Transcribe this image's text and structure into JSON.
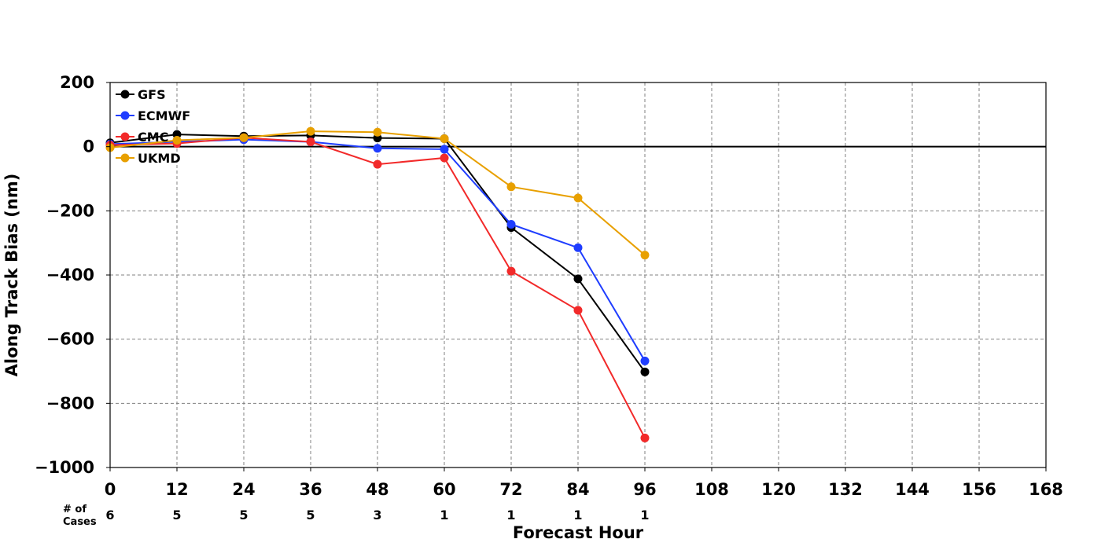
{
  "chart_data": {
    "type": "line",
    "title": "",
    "xlabel": "Forecast Hour",
    "ylabel": "Along Track Bias (nm)",
    "xlim": [
      0,
      168
    ],
    "ylim": [
      -1000,
      200
    ],
    "x_ticks": [
      0,
      12,
      24,
      36,
      48,
      60,
      72,
      84,
      96,
      108,
      120,
      132,
      144,
      156,
      168
    ],
    "y_ticks": [
      200,
      0,
      -200,
      -400,
      -600,
      -800,
      -1000
    ],
    "y_tick_labels": [
      "200",
      "0",
      "−200",
      "−400",
      "−600",
      "−800",
      "−1000"
    ],
    "grid": true,
    "legend_position": "top-left",
    "cases_label": "# of Cases",
    "cases_label_lines": [
      "# of",
      "Cases"
    ],
    "cases": [
      {
        "x": 0,
        "n": "6"
      },
      {
        "x": 12,
        "n": "5"
      },
      {
        "x": 24,
        "n": "5"
      },
      {
        "x": 36,
        "n": "5"
      },
      {
        "x": 48,
        "n": "3"
      },
      {
        "x": 60,
        "n": "1"
      },
      {
        "x": 72,
        "n": "1"
      },
      {
        "x": 84,
        "n": "1"
      },
      {
        "x": 96,
        "n": "1"
      }
    ],
    "x": [
      0,
      12,
      24,
      36,
      48,
      60,
      72,
      84,
      96
    ],
    "series": [
      {
        "name": "GFS",
        "color": "#000000",
        "values": [
          12,
          38,
          33,
          35,
          27,
          25,
          -252,
          -412,
          -702
        ]
      },
      {
        "name": "ECMWF",
        "color": "#1f3dff",
        "values": [
          8,
          15,
          22,
          15,
          -5,
          -8,
          -242,
          -315,
          -668
        ]
      },
      {
        "name": "CMC",
        "color": "#f22a2a",
        "values": [
          5,
          10,
          28,
          15,
          -55,
          -35,
          -388,
          -510,
          -908
        ]
      },
      {
        "name": "UKMD",
        "color": "#e8a000",
        "values": [
          -3,
          20,
          28,
          48,
          45,
          25,
          -125,
          -160,
          -338
        ]
      }
    ]
  }
}
